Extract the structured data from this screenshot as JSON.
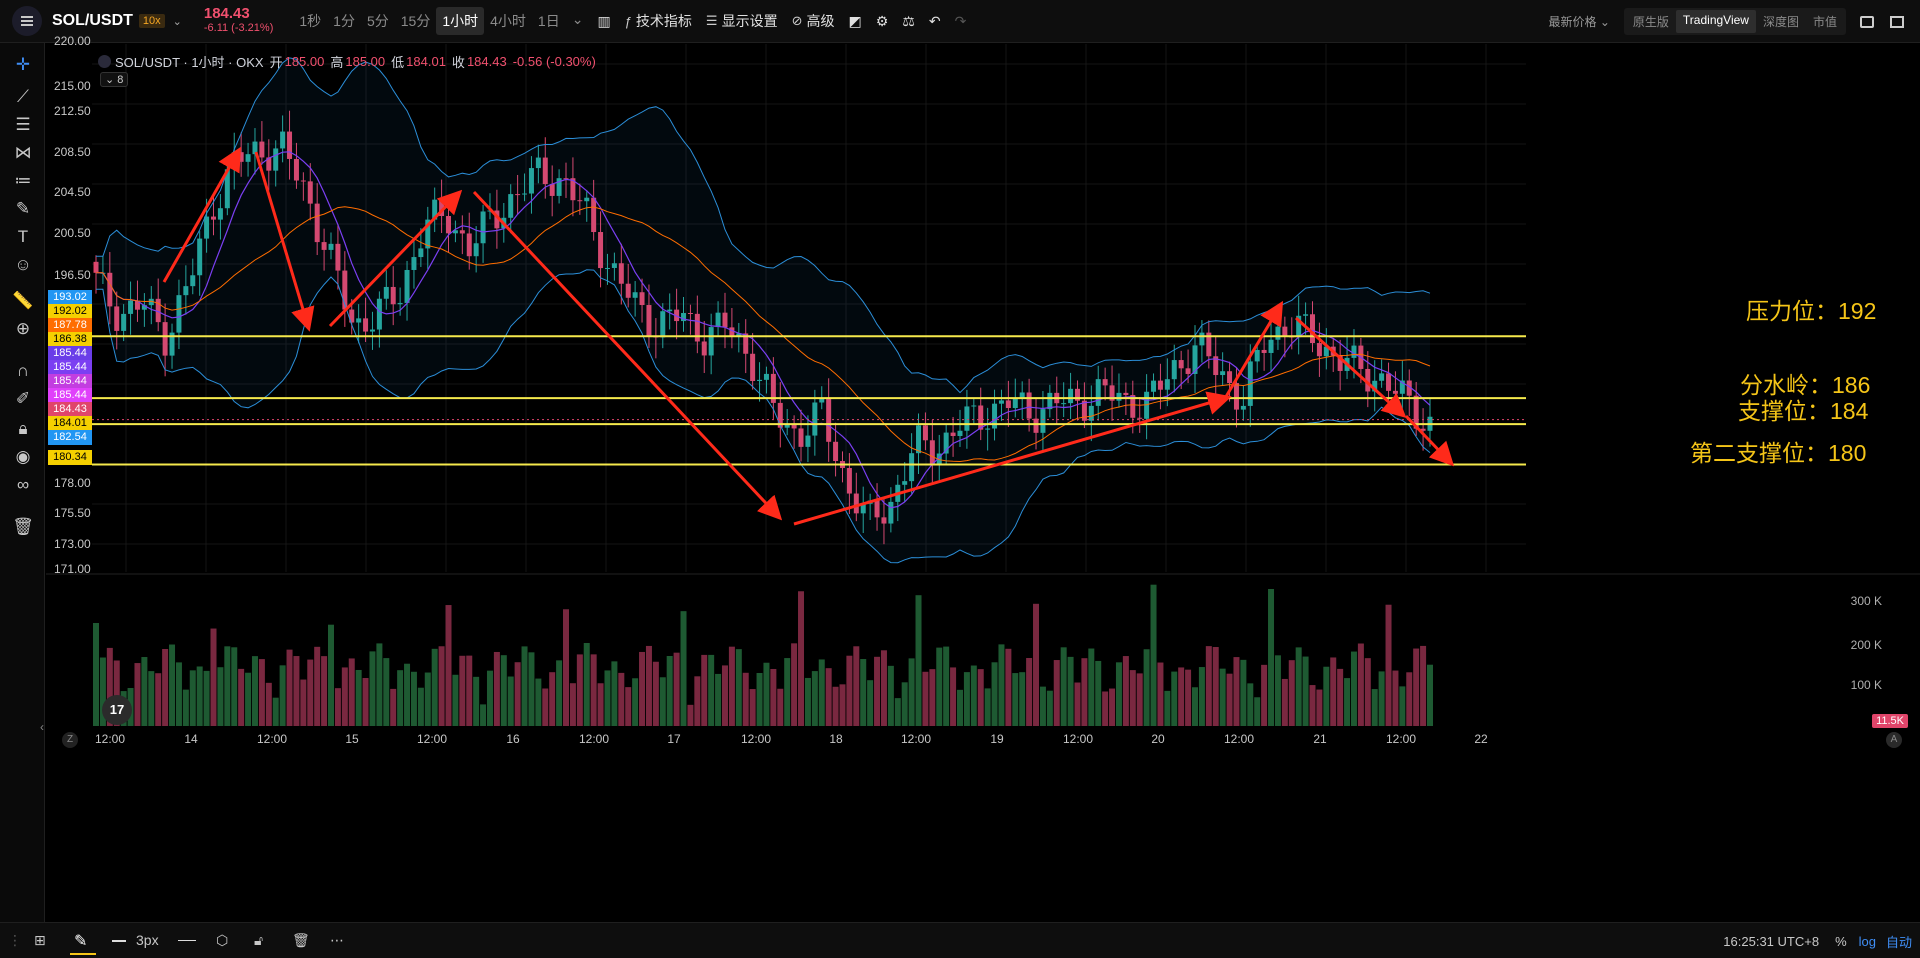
{
  "topbar": {
    "symbol": "SOL/USDT",
    "leverage": "10x",
    "last_price": "184.43",
    "change": "-6.11 (-3.21%)",
    "intervals": [
      "1秒",
      "1分",
      "5分",
      "15分",
      "1小时",
      "4小时",
      "1日"
    ],
    "active_interval": "1小时",
    "tools": {
      "indicators": "技术指标",
      "display": "显示设置",
      "advanced": "高级"
    },
    "latest_price_label": "最新价格",
    "modes": [
      "原生版",
      "TradingView",
      "深度图",
      "市值"
    ],
    "active_mode": "TradingView"
  },
  "legend": {
    "title": "SOL/USDT · 1小时 · OKX",
    "open_label": "开",
    "open": "185.00",
    "high_label": "高",
    "high": "185.00",
    "low_label": "低",
    "low": "184.01",
    "close_label": "收",
    "close": "184.43",
    "change": "-0.56 (-0.30%)",
    "indicator_count": "8"
  },
  "price_axis": {
    "ticks": [
      "220.00",
      "215.00",
      "212.50",
      "208.50",
      "204.50",
      "200.50",
      "196.50",
      "193.02",
      "192.02",
      "187.78",
      "186.38",
      "185.44",
      "185.44",
      "185.44",
      "185.44",
      "184.43",
      "184.01",
      "182.54",
      "180.34",
      "178.00",
      "175.50",
      "173.00",
      "171.00"
    ],
    "tags": [
      {
        "label": "193.02",
        "color": "#2196f3"
      },
      {
        "label": "192.02",
        "color": "#f5d000"
      },
      {
        "label": "187.78",
        "color": "#ff6d00"
      },
      {
        "label": "186.38",
        "color": "#f5d000"
      },
      {
        "label": "185.44",
        "color": "#6a3de8"
      },
      {
        "label": "185.44",
        "color": "#7b3ff2"
      },
      {
        "label": "185.44",
        "color": "#c23ee0"
      },
      {
        "label": "185.44",
        "color": "#e040fb"
      },
      {
        "label": "184.43",
        "color": "#e0456a"
      },
      {
        "label": "184.01",
        "color": "#f5d000"
      },
      {
        "label": "182.54",
        "color": "#2196f3"
      },
      {
        "label": "180.34",
        "color": "#f5d000"
      }
    ]
  },
  "volume_axis": {
    "ticks": [
      "300 K",
      "200 K",
      "100 K"
    ],
    "current": "11.5K"
  },
  "time_axis": {
    "ticks": [
      "12:00",
      "14",
      "12:00",
      "15",
      "12:00",
      "16",
      "12:00",
      "17",
      "12:00",
      "18",
      "12:00",
      "19",
      "12:00",
      "20",
      "12:00",
      "21",
      "12:00",
      "22"
    ]
  },
  "annotations": {
    "resistance": "压力位：192",
    "watershed": "分水岭：186",
    "support": "支撑位：184",
    "second_support": "第二支撑位：180"
  },
  "bottombar": {
    "stroke_width": "3px",
    "time": "16:25:31 UTC+8",
    "percent": "%",
    "log": "log",
    "auto": "自动"
  },
  "colors": {
    "bull": "#26a69a",
    "bear": "#e0456a",
    "hline": "#f5e94c",
    "arrow": "#ff2a1a"
  },
  "chart_data": {
    "type": "candlestick",
    "title": "SOL/USDT · 1小时 · OKX",
    "y_range": [
      171,
      220
    ],
    "hlines": [
      192.02,
      186.38,
      184.01,
      180.34
    ],
    "x_ticks": [
      "12:00",
      "14",
      "12:00",
      "15",
      "12:00",
      "16",
      "12:00",
      "17",
      "12:00",
      "18",
      "12:00",
      "19",
      "12:00",
      "20",
      "12:00",
      "21",
      "12:00",
      "22"
    ],
    "price_path": [
      197,
      194,
      195,
      192,
      197,
      204,
      208,
      209,
      209,
      205,
      199,
      193,
      194,
      196,
      202,
      203,
      200,
      203,
      205,
      207,
      206,
      203,
      198,
      195,
      193,
      194,
      192,
      193,
      190,
      185,
      183,
      185,
      179,
      175,
      177,
      182,
      182,
      184,
      185,
      186,
      185,
      186,
      186,
      187,
      186,
      186,
      189,
      191,
      189,
      186,
      192,
      193,
      192,
      190,
      189,
      188,
      186,
      184
    ]
  }
}
